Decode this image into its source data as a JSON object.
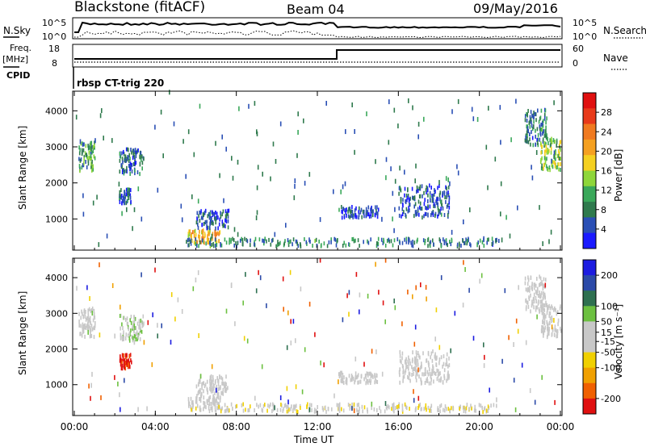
{
  "header": {
    "station": "Blackstone (fitACF)",
    "beam": "Beam 04",
    "date": "09/May/2016"
  },
  "top_panel": {
    "left_label": "N.Sky",
    "right_label": "N.Search",
    "left_ticks": [
      "10^5",
      "10^0"
    ],
    "right_ticks": [
      "10^5",
      "10^0"
    ]
  },
  "freq_panel": {
    "left_label_1": "Freq.",
    "left_label_2": "[MHz]",
    "cpid_label": "CPID",
    "right_label": "Nave",
    "left_ticks": [
      "18",
      "8"
    ],
    "right_ticks": [
      "60",
      "0"
    ],
    "cpid_text": "rbsp CT-trig 220"
  },
  "colors": {
    "power_scale": [
      "#1a1aff",
      "#2a4fb5",
      "#2f7a4d",
      "#3aa85a",
      "#8ed63a",
      "#f5d020",
      "#f5a020",
      "#f07a20",
      "#e83a1a",
      "#e01010"
    ],
    "velocity_scale": [
      "#1c1ce0",
      "#2b4aa8",
      "#2e7050",
      "#6cc040",
      "#c8c8c8",
      "#c8c8c8",
      "#f0d000",
      "#f0a000",
      "#f06000",
      "#e01010"
    ]
  },
  "chart_data": [
    {
      "type": "heatmap",
      "name": "power",
      "ylabel": "Slant Range [km]",
      "yticks": [
        "1000",
        "2000",
        "3000",
        "4000"
      ],
      "ylim": [
        180,
        4500
      ],
      "xlim": [
        0,
        24
      ],
      "colorbar_label": "Power [dB]",
      "colorbar_ticks": [
        "4",
        "8",
        "12",
        "16",
        "20",
        "24",
        "28"
      ],
      "colorbar_range": [
        0,
        32
      ],
      "regions": [
        {
          "t0": 0.2,
          "t1": 1.0,
          "r0": 2300,
          "r1": 3100,
          "v": 10
        },
        {
          "t0": 2.2,
          "t1": 3.4,
          "r0": 2200,
          "r1": 2900,
          "v": 6
        },
        {
          "t0": 2.2,
          "t1": 2.8,
          "r0": 1400,
          "r1": 1800,
          "v": 6
        },
        {
          "t0": 5.6,
          "t1": 7.2,
          "r0": 300,
          "r1": 650,
          "v": 20
        },
        {
          "t0": 6.0,
          "t1": 7.6,
          "r0": 700,
          "r1": 1200,
          "v": 5
        },
        {
          "t0": 5.5,
          "t1": 21.0,
          "r0": 200,
          "r1": 420,
          "v": 8
        },
        {
          "t0": 13.0,
          "t1": 15.0,
          "r0": 1000,
          "r1": 1300,
          "v": 5
        },
        {
          "t0": 16.0,
          "t1": 18.5,
          "r0": 1000,
          "r1": 1900,
          "v": 5
        },
        {
          "t0": 22.2,
          "t1": 23.3,
          "r0": 3000,
          "r1": 4000,
          "v": 8
        },
        {
          "t0": 23.0,
          "t1": 24.0,
          "r0": 2300,
          "r1": 3200,
          "v": 14
        }
      ]
    },
    {
      "type": "heatmap",
      "name": "velocity",
      "xlabel": "Time UT",
      "ylabel": "Slant Range [km]",
      "xticks": [
        "00:00",
        "04:00",
        "08:00",
        "12:00",
        "16:00",
        "20:00",
        "00:00"
      ],
      "yticks": [
        "1000",
        "2000",
        "3000",
        "4000"
      ],
      "ylim": [
        180,
        4500
      ],
      "xlim": [
        0,
        24
      ],
      "colorbar_label": "Velocity [m s⁻¹]",
      "colorbar_ticks": [
        "200",
        "100",
        "50",
        "15",
        "-15",
        "-50",
        "-100",
        "-200"
      ],
      "colorbar_range": [
        -250,
        250
      ],
      "regions": [
        {
          "t0": 0.2,
          "t1": 1.0,
          "r0": 2300,
          "r1": 3100,
          "v": 0
        },
        {
          "t0": 2.2,
          "t1": 3.4,
          "r0": 2200,
          "r1": 2900,
          "v": 30
        },
        {
          "t0": 2.2,
          "t1": 2.8,
          "r0": 1400,
          "r1": 1800,
          "v": -220
        },
        {
          "t0": 5.6,
          "t1": 7.2,
          "r0": 300,
          "r1": 650,
          "v": 0
        },
        {
          "t0": 6.0,
          "t1": 7.6,
          "r0": 700,
          "r1": 1200,
          "v": 0
        },
        {
          "t0": 5.5,
          "t1": 21.0,
          "r0": 200,
          "r1": 420,
          "v": -30
        },
        {
          "t0": 13.0,
          "t1": 15.0,
          "r0": 1000,
          "r1": 1300,
          "v": 0
        },
        {
          "t0": 16.0,
          "t1": 18.5,
          "r0": 1000,
          "r1": 1900,
          "v": 0
        },
        {
          "t0": 22.2,
          "t1": 23.3,
          "r0": 3000,
          "r1": 4000,
          "v": 0
        },
        {
          "t0": 23.0,
          "t1": 24.0,
          "r0": 2300,
          "r1": 3200,
          "v": 0
        }
      ]
    }
  ]
}
